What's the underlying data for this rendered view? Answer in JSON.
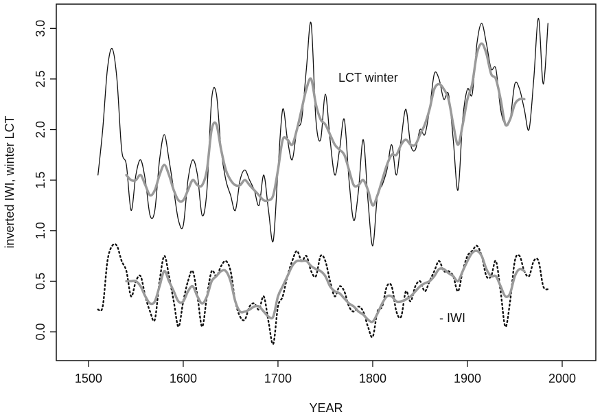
{
  "chart_data": {
    "type": "line",
    "x_label": "YEAR",
    "y_label": "inverted IWI, winter LCT",
    "annotations": [
      "LCT winter",
      "- IWI"
    ],
    "xlim": [
      1466,
      2035.5
    ],
    "ylim": [
      -0.285,
      3.24
    ],
    "xticks": [
      1500,
      1600,
      1700,
      1800,
      1900,
      2000
    ],
    "yticks": [
      {
        "value": 0,
        "label": "0.0"
      },
      0.5,
      {
        "value": 1,
        "label": "1.0"
      },
      1.5,
      {
        "value": 2,
        "label": "2.0"
      },
      2.5,
      {
        "value": 3,
        "label": "3.0"
      }
    ],
    "x": [
      1510,
      1515,
      1520,
      1525,
      1530,
      1535,
      1540,
      1545,
      1550,
      1555,
      1560,
      1565,
      1570,
      1575,
      1580,
      1585,
      1590,
      1595,
      1600,
      1605,
      1610,
      1615,
      1620,
      1625,
      1630,
      1635,
      1640,
      1645,
      1650,
      1655,
      1660,
      1665,
      1670,
      1675,
      1680,
      1685,
      1690,
      1695,
      1700,
      1705,
      1710,
      1715,
      1720,
      1725,
      1730,
      1735,
      1740,
      1745,
      1750,
      1755,
      1760,
      1765,
      1770,
      1775,
      1780,
      1785,
      1790,
      1795,
      1800,
      1805,
      1810,
      1815,
      1820,
      1825,
      1830,
      1835,
      1840,
      1845,
      1850,
      1855,
      1860,
      1865,
      1870,
      1875,
      1880,
      1885,
      1890,
      1895,
      1900,
      1905,
      1910,
      1915,
      1920,
      1925,
      1930,
      1935,
      1940,
      1945,
      1950,
      1955,
      1960,
      1965,
      1970,
      1975,
      1980,
      1985
    ],
    "series": [
      {
        "color": "#111111",
        "line_style": "solid",
        "line_width": 1.3,
        "values": [
          1.55,
          2.0,
          2.6,
          2.8,
          2.5,
          1.8,
          1.65,
          1.2,
          1.55,
          1.7,
          1.5,
          1.15,
          1.2,
          1.7,
          1.95,
          1.7,
          1.4,
          1.1,
          1.05,
          1.5,
          1.7,
          1.55,
          1.15,
          1.4,
          2.3,
          2.35,
          1.8,
          1.5,
          1.35,
          1.2,
          1.5,
          1.6,
          1.5,
          1.4,
          1.25,
          1.55,
          1.2,
          0.9,
          1.6,
          2.2,
          1.9,
          1.7,
          2.0,
          2.1,
          2.6,
          3.05,
          2.1,
          1.9,
          2.35,
          1.9,
          1.55,
          1.8,
          2.1,
          1.5,
          1.1,
          1.4,
          1.9,
          1.3,
          0.85,
          1.35,
          1.45,
          1.6,
          1.85,
          1.55,
          1.9,
          2.2,
          1.85,
          1.8,
          2.0,
          1.95,
          2.2,
          2.55,
          2.5,
          2.3,
          2.35,
          1.9,
          1.4,
          2.1,
          2.4,
          2.35,
          2.85,
          3.05,
          2.85,
          2.6,
          2.6,
          2.2,
          2.05,
          2.1,
          2.45,
          2.4,
          2.2,
          2.0,
          2.5,
          3.1,
          2.45,
          3.05
        ]
      },
      {
        "color": "#9a9a9a",
        "line_style": "solid",
        "line_width": 3.5,
        "values": [
          null,
          null,
          null,
          null,
          null,
          null,
          1.55,
          1.5,
          1.5,
          1.55,
          1.45,
          1.35,
          1.4,
          1.55,
          1.65,
          1.55,
          1.4,
          1.3,
          1.3,
          1.4,
          1.5,
          1.45,
          1.45,
          1.6,
          2.0,
          2.05,
          1.8,
          1.6,
          1.5,
          1.45,
          1.45,
          1.5,
          1.45,
          1.4,
          1.35,
          1.3,
          1.3,
          1.35,
          1.6,
          1.9,
          1.9,
          1.85,
          2.0,
          2.2,
          2.4,
          2.5,
          2.25,
          2.1,
          2.05,
          1.95,
          1.85,
          1.8,
          1.75,
          1.6,
          1.45,
          1.45,
          1.5,
          1.4,
          1.25,
          1.35,
          1.5,
          1.65,
          1.75,
          1.75,
          1.85,
          1.9,
          1.85,
          1.85,
          1.95,
          2.05,
          2.2,
          2.4,
          2.45,
          2.4,
          2.3,
          2.05,
          1.85,
          2.05,
          2.3,
          2.45,
          2.75,
          2.85,
          2.75,
          2.55,
          2.5,
          2.3,
          2.05,
          2.1,
          2.25,
          2.3,
          2.3,
          null,
          null,
          null,
          null,
          null
        ]
      },
      {
        "color": "#111111",
        "line_style": "dotted",
        "line_width": 2.4,
        "values": [
          0.22,
          0.25,
          0.7,
          0.85,
          0.85,
          0.7,
          0.6,
          0.35,
          0.5,
          0.55,
          0.35,
          0.2,
          0.12,
          0.5,
          0.75,
          0.55,
          0.3,
          0.05,
          0.3,
          0.5,
          0.6,
          0.35,
          0.05,
          0.35,
          0.6,
          0.55,
          0.65,
          0.7,
          0.6,
          0.3,
          0.15,
          0.12,
          0.25,
          0.28,
          0.22,
          0.35,
          0.1,
          -0.12,
          0.25,
          0.35,
          0.55,
          0.7,
          0.8,
          0.7,
          0.75,
          0.6,
          0.55,
          0.75,
          0.7,
          0.5,
          0.35,
          0.45,
          0.4,
          0.25,
          0.2,
          0.25,
          0.2,
          0.05,
          -0.05,
          0.2,
          0.25,
          0.45,
          0.45,
          0.2,
          0.15,
          0.4,
          0.3,
          0.45,
          0.5,
          0.4,
          0.5,
          0.6,
          0.7,
          0.6,
          0.6,
          0.55,
          0.4,
          0.6,
          0.75,
          0.8,
          0.85,
          0.75,
          0.55,
          0.55,
          0.7,
          0.4,
          0.05,
          0.3,
          0.7,
          0.75,
          0.6,
          0.55,
          0.7,
          0.7,
          0.45,
          0.42
        ]
      },
      {
        "color": "#9a9a9a",
        "line_style": "solid",
        "line_width": 3.5,
        "values": [
          null,
          null,
          null,
          null,
          null,
          null,
          0.5,
          0.5,
          0.5,
          0.45,
          0.35,
          0.28,
          0.3,
          0.45,
          0.6,
          0.5,
          0.4,
          0.3,
          0.3,
          0.4,
          0.45,
          0.35,
          0.28,
          0.35,
          0.5,
          0.55,
          0.6,
          0.6,
          0.5,
          0.3,
          0.2,
          0.2,
          0.22,
          0.25,
          0.25,
          0.2,
          0.15,
          0.15,
          0.35,
          0.45,
          0.55,
          0.65,
          0.7,
          0.7,
          0.7,
          0.65,
          0.62,
          0.6,
          0.55,
          0.45,
          0.4,
          0.38,
          0.33,
          0.28,
          0.25,
          0.2,
          0.17,
          0.12,
          0.1,
          0.18,
          0.28,
          0.35,
          0.35,
          0.3,
          0.3,
          0.32,
          0.35,
          0.4,
          0.45,
          0.48,
          0.5,
          0.55,
          0.62,
          0.62,
          0.58,
          0.55,
          0.5,
          0.6,
          0.7,
          0.78,
          0.8,
          0.75,
          0.62,
          0.55,
          0.55,
          0.45,
          0.35,
          0.38,
          0.55,
          0.62,
          0.6,
          null,
          null,
          null,
          null,
          null
        ]
      }
    ]
  }
}
